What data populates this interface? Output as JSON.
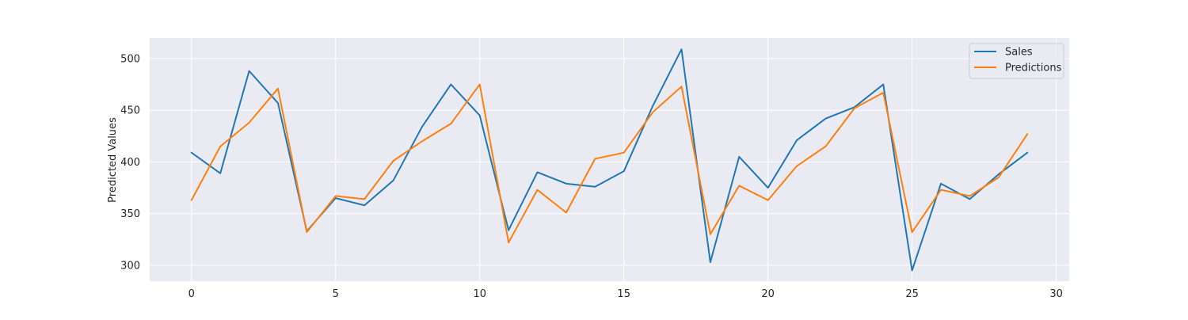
{
  "chart_data": {
    "type": "line",
    "title": "",
    "xlabel": "",
    "ylabel": "Predicted Values",
    "xlim": [
      -1.45,
      30.45
    ],
    "ylim": [
      284.6,
      519.9
    ],
    "xticks": [
      0,
      5,
      10,
      15,
      20,
      25,
      30
    ],
    "yticks": [
      300,
      350,
      400,
      450,
      500
    ],
    "grid": true,
    "legend_position": "top-right",
    "x": [
      0,
      1,
      2,
      3,
      4,
      5,
      6,
      7,
      8,
      9,
      10,
      11,
      12,
      13,
      14,
      15,
      16,
      17,
      18,
      19,
      20,
      21,
      22,
      23,
      24,
      25,
      26,
      27,
      28,
      29
    ],
    "series": [
      {
        "name": "Sales",
        "color": "#1f77b4",
        "values": [
          409,
          389,
          488,
          457,
          333,
          365,
          358,
          382,
          434,
          475,
          445,
          334,
          390,
          379,
          376,
          391,
          454,
          509,
          303,
          405,
          375,
          421,
          442,
          453,
          475,
          295,
          379,
          364,
          388,
          409
        ]
      },
      {
        "name": "Predictions",
        "color": "#ff7f0e",
        "values": [
          363,
          415,
          438,
          471,
          332,
          367,
          364,
          401,
          420,
          437,
          475,
          322,
          373,
          351,
          403,
          409,
          448,
          473,
          330,
          377,
          363,
          396,
          415,
          452,
          467,
          332,
          373,
          367,
          385,
          427
        ]
      }
    ],
    "colors": {
      "plot_background": "#eaeaf2",
      "grid": "#ffffff",
      "text": "#262626"
    }
  }
}
